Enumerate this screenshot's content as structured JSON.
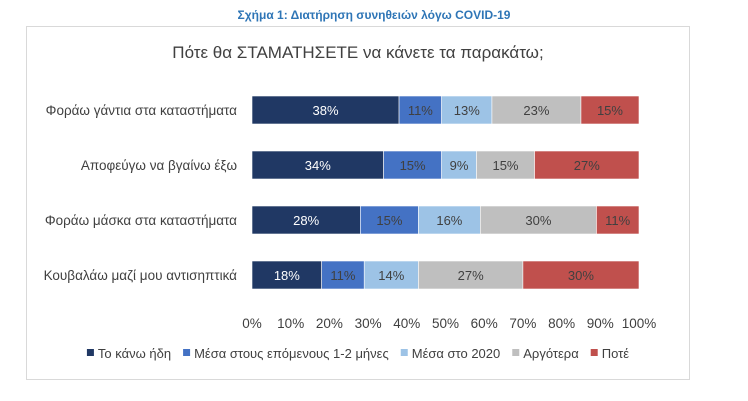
{
  "figure_caption": "Σχήμα 1: Διατήρηση συνηθειών λόγω COVID-19",
  "chart_data": {
    "type": "bar",
    "orientation": "horizontal",
    "stacked": true,
    "title": "Πότε θα ΣΤΑΜΑΤΗΣΕΤΕ να κάνετε τα παρακάτω;",
    "categories": [
      "Φοράω γάντια στα καταστήματα",
      "Αποφεύγω να βγαίνω έξω",
      "Φοράω μάσκα στα καταστήματα",
      "Κουβαλάω μαζί μου αντισηπτικά"
    ],
    "series": [
      {
        "name": "Το κάνω ήδη",
        "color": "#203864",
        "values": [
          38,
          34,
          28,
          18
        ]
      },
      {
        "name": "Μέσα στους επόμενους 1-2 μήνες",
        "color": "#4472c4",
        "values": [
          11,
          15,
          15,
          11
        ]
      },
      {
        "name": "Μέσα στο 2020",
        "color": "#9dc3e6",
        "values": [
          13,
          9,
          16,
          14
        ]
      },
      {
        "name": "Αργότερα",
        "color": "#bfbfbf",
        "values": [
          23,
          15,
          30,
          27
        ]
      },
      {
        "name": "Ποτέ",
        "color": "#c0504d",
        "values": [
          15,
          27,
          11,
          30
        ]
      }
    ],
    "xlim": [
      0,
      100
    ],
    "xticks": [
      "0%",
      "10%",
      "20%",
      "30%",
      "40%",
      "50%",
      "60%",
      "70%",
      "80%",
      "90%",
      "100%"
    ],
    "value_suffix": "%",
    "grid": false,
    "legend_position": "bottom"
  }
}
